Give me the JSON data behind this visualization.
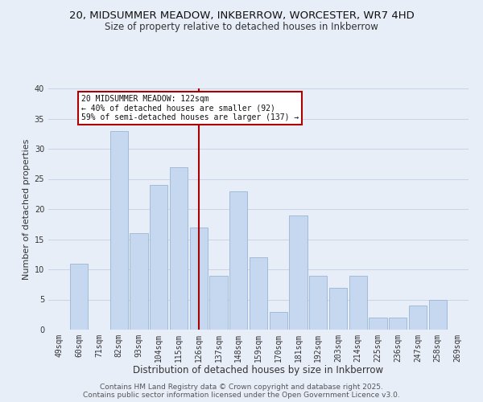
{
  "title": "20, MIDSUMMER MEADOW, INKBERROW, WORCESTER, WR7 4HD",
  "subtitle": "Size of property relative to detached houses in Inkberrow",
  "xlabel": "Distribution of detached houses by size in Inkberrow",
  "ylabel": "Number of detached properties",
  "categories": [
    "49sqm",
    "60sqm",
    "71sqm",
    "82sqm",
    "93sqm",
    "104sqm",
    "115sqm",
    "126sqm",
    "137sqm",
    "148sqm",
    "159sqm",
    "170sqm",
    "181sqm",
    "192sqm",
    "203sqm",
    "214sqm",
    "225sqm",
    "236sqm",
    "247sqm",
    "258sqm",
    "269sqm"
  ],
  "values": [
    0,
    11,
    0,
    33,
    16,
    24,
    27,
    17,
    9,
    23,
    12,
    3,
    19,
    9,
    7,
    9,
    2,
    2,
    4,
    5,
    0
  ],
  "bar_color": "#c5d8f0",
  "bar_edge_color": "#9ab5d5",
  "vline_x": 7,
  "vline_color": "#aa0000",
  "annotation_text": "20 MIDSUMMER MEADOW: 122sqm\n← 40% of detached houses are smaller (92)\n59% of semi-detached houses are larger (137) →",
  "annotation_box_color": "#ffffff",
  "annotation_box_edge": "#aa0000",
  "ylim": [
    0,
    40
  ],
  "yticks": [
    0,
    5,
    10,
    15,
    20,
    25,
    30,
    35,
    40
  ],
  "grid_color": "#c8d4e8",
  "background_color": "#e8eef8",
  "footer1": "Contains HM Land Registry data © Crown copyright and database right 2025.",
  "footer2": "Contains public sector information licensed under the Open Government Licence v3.0.",
  "title_fontsize": 9.5,
  "subtitle_fontsize": 8.5,
  "xlabel_fontsize": 8.5,
  "ylabel_fontsize": 8,
  "tick_fontsize": 7,
  "footer_fontsize": 6.5
}
